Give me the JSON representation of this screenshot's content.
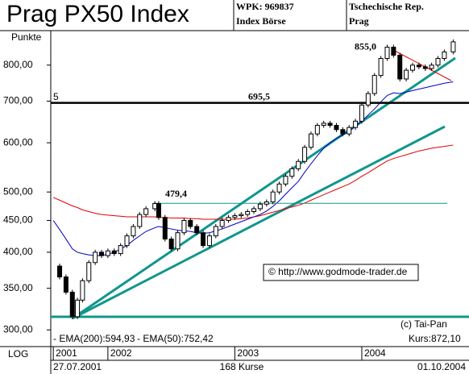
{
  "chart_data": {
    "type": "candlestick",
    "title": "Prag PX50 Index",
    "header": {
      "wpk": "WPK: 969837",
      "exchange": "Index Börse",
      "country": "Tschechische Rep.",
      "city": "Prag"
    },
    "y_label": "Punkte",
    "scale_label": "LOG",
    "log_scale": true,
    "footer": {
      "start": "27.07.2001",
      "count": "168 Kurse",
      "end": "01.10.2004"
    },
    "credit": "(c) Tai-Pan",
    "last_price": "Kurs:872,10",
    "url": "© http://www.godmode-trader.de",
    "level_marker": "5",
    "color": "#000000",
    "x": [
      2001.57,
      2001.62,
      2001.67,
      2001.72,
      2001.76,
      2001.8,
      2001.85,
      2001.9,
      2001.95,
      2002.0,
      2002.05,
      2002.1,
      2002.15,
      2002.2,
      2002.25,
      2002.3,
      2002.37,
      2002.4,
      2002.45,
      2002.5,
      2002.55,
      2002.6,
      2002.65,
      2002.7,
      2002.75,
      2002.8,
      2002.85,
      2002.9,
      2002.95,
      2003.0,
      2003.05,
      2003.1,
      2003.15,
      2003.2,
      2003.25,
      2003.3,
      2003.35,
      2003.4,
      2003.45,
      2003.5,
      2003.55,
      2003.6,
      2003.65,
      2003.7,
      2003.75,
      2003.8,
      2003.85,
      2003.9,
      2003.95,
      2004.0,
      2004.05,
      2004.1,
      2004.15,
      2004.2,
      2004.25,
      2004.3,
      2004.35,
      2004.4,
      2004.45,
      2004.5,
      2004.55,
      2004.6,
      2004.65,
      2004.72
    ],
    "values": [
      380,
      365,
      345,
      315,
      335,
      360,
      385,
      400,
      395,
      402,
      398,
      410,
      425,
      440,
      460,
      470,
      479,
      455,
      420,
      405,
      430,
      450,
      440,
      430,
      410,
      425,
      440,
      450,
      455,
      458,
      460,
      465,
      470,
      478,
      482,
      500,
      515,
      530,
      545,
      560,
      590,
      620,
      640,
      645,
      640,
      630,
      620,
      635,
      650,
      690,
      720,
      770,
      820,
      855,
      830,
      760,
      785,
      800,
      795,
      790,
      800,
      820,
      840,
      872
    ],
    "series": [
      {
        "name": "- EMA(200):594,93",
        "color": "#e00000",
        "values": [
          490,
          485,
          480,
          475,
          472,
          468,
          465,
          462,
          460,
          459,
          458,
          457,
          456,
          456,
          456,
          456,
          456,
          455,
          455,
          454,
          454,
          454,
          453,
          453,
          452,
          452,
          452,
          452,
          452,
          452,
          453,
          454,
          456,
          458,
          461,
          464,
          467,
          470,
          473,
          476,
          480,
          485,
          490,
          495,
          500,
          505,
          510,
          515,
          522,
          530,
          537,
          545,
          553,
          561,
          566,
          570,
          574,
          578,
          582,
          585,
          588,
          590,
          592,
          595
        ]
      },
      {
        "name": "- EMA(50):752,42",
        "color": "#0000c0",
        "values": [
          450,
          435,
          420,
          405,
          400,
          398,
          396,
          395,
          395,
          397,
          400,
          405,
          410,
          418,
          425,
          432,
          438,
          440,
          438,
          436,
          434,
          433,
          432,
          430,
          429,
          430,
          433,
          436,
          440,
          444,
          448,
          452,
          456,
          460,
          466,
          474,
          484,
          496,
          508,
          520,
          538,
          555,
          572,
          588,
          600,
          610,
          618,
          626,
          638,
          650,
          665,
          680,
          698,
          715,
          722,
          720,
          724,
          728,
          732,
          736,
          740,
          744,
          748,
          752
        ]
      }
    ],
    "annotations": [
      {
        "value": 695.5,
        "label": "695,5"
      },
      {
        "value": 479.4,
        "label": "479,4"
      },
      {
        "value": 855,
        "label": "855,0"
      }
    ],
    "xlim": [
      2001.55,
      2004.8
    ],
    "xticks": [
      {
        "value": 2001.57,
        "label": "2001"
      },
      {
        "value": 2002,
        "label": "2002"
      },
      {
        "value": 2003,
        "label": "2003"
      },
      {
        "value": 2004,
        "label": "2004"
      }
    ],
    "ylim": [
      282,
      909
    ],
    "yticks": [
      {
        "value": 300,
        "label": "300,00"
      },
      {
        "value": 350,
        "label": "350,00"
      },
      {
        "value": 400,
        "label": "400,00"
      },
      {
        "value": 450,
        "label": "450,00"
      },
      {
        "value": 500,
        "label": "500,00"
      },
      {
        "value": 600,
        "label": "600,00"
      },
      {
        "value": 700,
        "label": "700,00"
      },
      {
        "value": 800,
        "label": "800,00"
      }
    ]
  }
}
